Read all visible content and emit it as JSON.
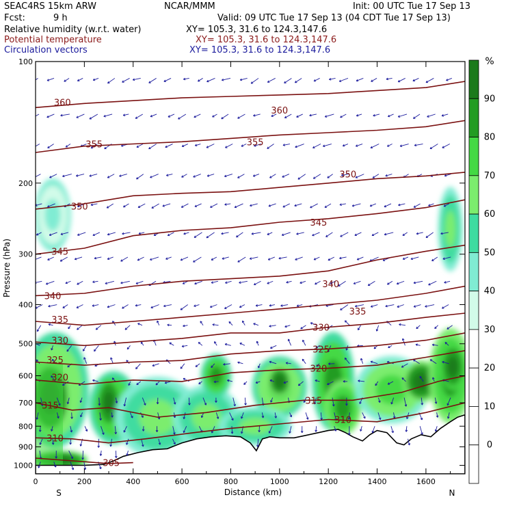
{
  "header": {
    "model": "SEAC4RS 15km ARW",
    "org": "NCAR/MMM",
    "init": "Init: 00 UTC Tue 17 Sep 13",
    "fcst_label": "Fcst:",
    "fcst_value": "9 h",
    "valid": "Valid: 09 UTC Tue 17 Sep 13 (04 CDT Tue 17 Sep 13)",
    "fields": [
      {
        "name": "Relative humidity (w.r.t. water)",
        "xy": "XY= 105.3, 31.6 to 124.3,147.6",
        "color": "#000000"
      },
      {
        "name": "Potential temperature",
        "xy": "XY= 105.3, 31.6 to 124.3,147.6",
        "color": "#8b1a1a"
      },
      {
        "name": "Circulation vectors",
        "xy": "XY= 105.3, 31.6 to 124.3,147.6",
        "color": "#1a1a9c"
      }
    ]
  },
  "chart_data": {
    "type": "cross-section",
    "xlabel": "Distance (km)",
    "ylabel": "Pressure (hPa)",
    "xlim": [
      0,
      1760
    ],
    "ylim": [
      1050,
      100
    ],
    "y_scale": "log",
    "x_ticks": [
      0,
      200,
      400,
      600,
      800,
      1000,
      1200,
      1400,
      1600
    ],
    "y_ticks": [
      100,
      200,
      300,
      400,
      500,
      600,
      700,
      800,
      900,
      1000
    ],
    "x_end_labels": {
      "left": "S",
      "right": "N"
    },
    "colorbar": {
      "unit": "%",
      "levels": [
        0,
        10,
        20,
        30,
        40,
        50,
        60,
        70,
        80,
        90
      ],
      "colors": [
        "#ffffff",
        "#ffffff",
        "#ffffff",
        "#ffffff",
        "#d2fbe9",
        "#80ecd3",
        "#3fdca0",
        "#7ced6e",
        "#44d944",
        "#239c23",
        "#1b7a1b"
      ]
    },
    "terrain_profile": [
      [
        0,
        1000
      ],
      [
        100,
        1000
      ],
      [
        200,
        1000
      ],
      [
        280,
        995
      ],
      [
        320,
        975
      ],
      [
        360,
        950
      ],
      [
        420,
        930
      ],
      [
        480,
        915
      ],
      [
        540,
        910
      ],
      [
        600,
        880
      ],
      [
        660,
        860
      ],
      [
        720,
        850
      ],
      [
        780,
        845
      ],
      [
        840,
        850
      ],
      [
        880,
        880
      ],
      [
        905,
        920
      ],
      [
        930,
        860
      ],
      [
        960,
        850
      ],
      [
        1000,
        855
      ],
      [
        1060,
        855
      ],
      [
        1100,
        845
      ],
      [
        1160,
        830
      ],
      [
        1200,
        820
      ],
      [
        1240,
        815
      ],
      [
        1270,
        830
      ],
      [
        1300,
        850
      ],
      [
        1340,
        870
      ],
      [
        1370,
        840
      ],
      [
        1400,
        820
      ],
      [
        1440,
        830
      ],
      [
        1480,
        880
      ],
      [
        1510,
        890
      ],
      [
        1540,
        860
      ],
      [
        1580,
        840
      ],
      [
        1620,
        850
      ],
      [
        1660,
        810
      ],
      [
        1700,
        780
      ],
      [
        1730,
        760
      ],
      [
        1760,
        750
      ]
    ],
    "rh_blobs": [
      {
        "x": 80,
        "p": 650,
        "rx": 110,
        "rp": 170,
        "rh": 75
      },
      {
        "x": 60,
        "p": 680,
        "rx": 70,
        "rp": 120,
        "rh": 90
      },
      {
        "x": 320,
        "p": 720,
        "rx": 80,
        "rp": 120,
        "rh": 80
      },
      {
        "x": 300,
        "p": 700,
        "rx": 40,
        "rp": 80,
        "rh": 95
      },
      {
        "x": 500,
        "p": 760,
        "rx": 140,
        "rp": 140,
        "rh": 65
      },
      {
        "x": 700,
        "p": 760,
        "rx": 110,
        "rp": 110,
        "rh": 62
      },
      {
        "x": 740,
        "p": 600,
        "rx": 50,
        "rp": 60,
        "rh": 80
      },
      {
        "x": 1000,
        "p": 640,
        "rx": 90,
        "rp": 90,
        "rh": 75
      },
      {
        "x": 1000,
        "p": 620,
        "rx": 40,
        "rp": 45,
        "rh": 92
      },
      {
        "x": 1220,
        "p": 620,
        "rx": 70,
        "rp": 140,
        "rh": 80
      },
      {
        "x": 1260,
        "p": 720,
        "rx": 60,
        "rp": 90,
        "rh": 88
      },
      {
        "x": 1460,
        "p": 650,
        "rx": 120,
        "rp": 100,
        "rh": 72
      },
      {
        "x": 1580,
        "p": 620,
        "rx": 60,
        "rp": 60,
        "rh": 90
      },
      {
        "x": 1700,
        "p": 600,
        "rx": 70,
        "rp": 130,
        "rh": 85
      },
      {
        "x": 1710,
        "p": 570,
        "rx": 40,
        "rp": 60,
        "rh": 95
      },
      {
        "x": 100,
        "p": 970,
        "rx": 90,
        "rp": 40,
        "rh": 95
      },
      {
        "x": 900,
        "p": 800,
        "rx": 120,
        "rp": 70,
        "rh": 62
      },
      {
        "x": 70,
        "p": 240,
        "rx": 60,
        "rp": 40,
        "rh": 48
      },
      {
        "x": 1700,
        "p": 260,
        "rx": 40,
        "rp": 50,
        "rh": 65
      }
    ],
    "theta_contours": [
      {
        "level": 305,
        "pts": [
          [
            0,
            960
          ],
          [
            300,
            990
          ],
          [
            400,
            985
          ]
        ],
        "labels": [
          [
            310,
            985
          ]
        ]
      },
      {
        "level": 310,
        "pts": [
          [
            0,
            855
          ],
          [
            150,
            860
          ],
          [
            300,
            880
          ],
          [
            450,
            860
          ],
          [
            650,
            830
          ],
          [
            800,
            810
          ],
          [
            1000,
            790
          ],
          [
            1200,
            770
          ],
          [
            1400,
            780
          ],
          [
            1600,
            740
          ],
          [
            1760,
            700
          ]
        ],
        "labels": [
          [
            80,
            855
          ],
          [
            1260,
            770
          ]
        ]
      },
      {
        "level": 315,
        "pts": [
          [
            0,
            700
          ],
          [
            150,
            730
          ],
          [
            300,
            720
          ],
          [
            500,
            760
          ],
          [
            700,
            740
          ],
          [
            900,
            710
          ],
          [
            1100,
            690
          ],
          [
            1300,
            690
          ],
          [
            1500,
            660
          ],
          [
            1650,
            620
          ],
          [
            1760,
            600
          ]
        ],
        "labels": [
          [
            60,
            710
          ],
          [
            1140,
            690
          ]
        ]
      },
      {
        "level": 320,
        "pts": [
          [
            0,
            615
          ],
          [
            200,
            630
          ],
          [
            400,
            615
          ],
          [
            600,
            620
          ],
          [
            800,
            590
          ],
          [
            1000,
            580
          ],
          [
            1200,
            575
          ],
          [
            1400,
            565
          ],
          [
            1600,
            540
          ],
          [
            1760,
            520
          ]
        ],
        "labels": [
          [
            100,
            605
          ],
          [
            1160,
            575
          ]
        ]
      },
      {
        "level": 325,
        "pts": [
          [
            0,
            555
          ],
          [
            200,
            565
          ],
          [
            400,
            555
          ],
          [
            600,
            550
          ],
          [
            800,
            530
          ],
          [
            1000,
            520
          ],
          [
            1200,
            515
          ],
          [
            1400,
            505
          ],
          [
            1600,
            490
          ],
          [
            1760,
            470
          ]
        ],
        "labels": [
          [
            80,
            548
          ],
          [
            1170,
            515
          ]
        ]
      },
      {
        "level": 330,
        "pts": [
          [
            0,
            495
          ],
          [
            200,
            505
          ],
          [
            400,
            495
          ],
          [
            600,
            485
          ],
          [
            800,
            470
          ],
          [
            1000,
            470
          ],
          [
            1200,
            455
          ],
          [
            1400,
            445
          ],
          [
            1600,
            430
          ],
          [
            1760,
            420
          ]
        ],
        "labels": [
          [
            100,
            490
          ],
          [
            1170,
            455
          ]
        ]
      },
      {
        "level": 335,
        "pts": [
          [
            0,
            440
          ],
          [
            200,
            450
          ],
          [
            400,
            440
          ],
          [
            600,
            430
          ],
          [
            800,
            420
          ],
          [
            1000,
            410
          ],
          [
            1200,
            400
          ],
          [
            1400,
            390
          ],
          [
            1600,
            375
          ],
          [
            1760,
            360
          ]
        ],
        "labels": [
          [
            100,
            435
          ],
          [
            1320,
            415
          ]
        ]
      },
      {
        "level": 340,
        "pts": [
          [
            0,
            380
          ],
          [
            200,
            375
          ],
          [
            400,
            360
          ],
          [
            600,
            350
          ],
          [
            800,
            345
          ],
          [
            1000,
            340
          ],
          [
            1200,
            330
          ],
          [
            1400,
            310
          ],
          [
            1600,
            295
          ],
          [
            1760,
            285
          ]
        ],
        "labels": [
          [
            70,
            380
          ],
          [
            1210,
            355
          ]
        ]
      },
      {
        "level": 345,
        "pts": [
          [
            0,
            300
          ],
          [
            200,
            290
          ],
          [
            400,
            270
          ],
          [
            600,
            262
          ],
          [
            800,
            258
          ],
          [
            1000,
            250
          ],
          [
            1200,
            245
          ],
          [
            1400,
            238
          ],
          [
            1600,
            230
          ],
          [
            1760,
            220
          ]
        ],
        "labels": [
          [
            100,
            295
          ],
          [
            1160,
            250
          ]
        ]
      },
      {
        "level": 350,
        "pts": [
          [
            0,
            232
          ],
          [
            200,
            225
          ],
          [
            400,
            215
          ],
          [
            600,
            212
          ],
          [
            800,
            210
          ],
          [
            1000,
            205
          ],
          [
            1200,
            200
          ],
          [
            1400,
            195
          ],
          [
            1600,
            192
          ],
          [
            1760,
            188
          ]
        ],
        "labels": [
          [
            180,
            228
          ],
          [
            1280,
            190
          ]
        ]
      },
      {
        "level": 355,
        "pts": [
          [
            0,
            168
          ],
          [
            200,
            162
          ],
          [
            400,
            160
          ],
          [
            600,
            158
          ],
          [
            800,
            155
          ],
          [
            1000,
            152
          ],
          [
            1200,
            150
          ],
          [
            1400,
            148
          ],
          [
            1600,
            145
          ],
          [
            1760,
            140
          ]
        ],
        "labels": [
          [
            240,
            160
          ],
          [
            900,
            158
          ]
        ]
      },
      {
        "level": 360,
        "pts": [
          [
            0,
            130
          ],
          [
            200,
            127
          ],
          [
            400,
            125
          ],
          [
            600,
            123
          ],
          [
            800,
            122
          ],
          [
            1000,
            121
          ],
          [
            1200,
            120
          ],
          [
            1400,
            118
          ],
          [
            1600,
            116
          ],
          [
            1760,
            112
          ]
        ],
        "labels": [
          [
            110,
            126
          ],
          [
            1000,
            132
          ]
        ]
      }
    ],
    "theta_color": "#7a1010",
    "vector_color": "#1a1a9c"
  }
}
